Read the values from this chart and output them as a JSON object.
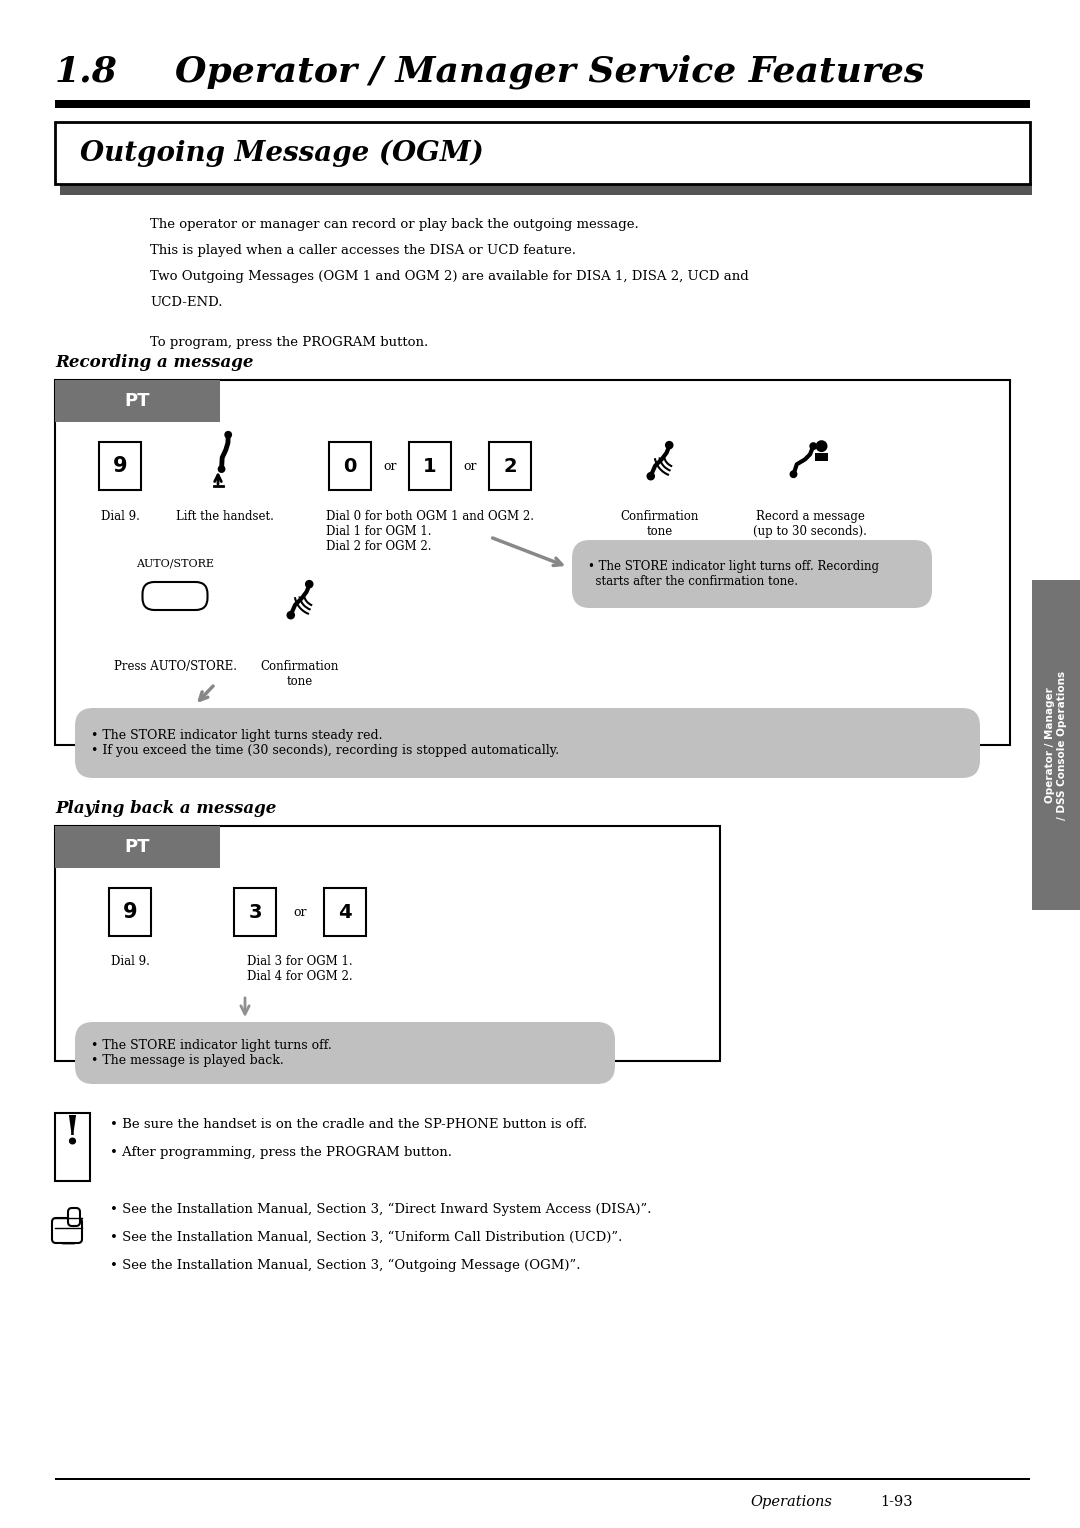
{
  "page_bg": "#ffffff",
  "title_number": "1.8",
  "title_text": "Operator / Manager Service Features",
  "section_title": "Outgoing Message (OGM)",
  "intro_line1": "The operator or manager can record or play back the outgoing message.",
  "intro_line2": "This is played when a caller accesses the DISA or UCD feature.",
  "intro_line3": "Two Outgoing Messages (OGM 1 and OGM 2) are available for DISA 1, DISA 2, UCD and",
  "intro_line4": "UCD-END.",
  "program_line": "To program, press the PROGRAM button.",
  "recording_title": "Recording a message",
  "playing_title": "Playing back a message",
  "pt_bg": "#737373",
  "pt_text": "PT",
  "bubble_bg": "#c0c0c0",
  "side_tab_bg": "#737373",
  "side_tab_line1": "Operator / Manager",
  "side_tab_line2": "/ DSS Console Operations",
  "footer_italic": "Operations",
  "footer_page": "1-93",
  "note_exclaim": [
    "Be sure the handset is on the cradle and the SP-PHONE button is off.",
    "After programming, press the PROGRAM button."
  ],
  "note_ref": [
    "See the Installation Manual, Section 3, “Direct Inward System Access (DISA)”.",
    "See the Installation Manual, Section 3, “Uniform Call Distribution (UCD)”.",
    "See the Installation Manual, Section 3, “Outgoing Message (OGM)”."
  ],
  "bubble1_text": "• The STORE indicator light turns off. Recording\n  starts after the confirmation tone.",
  "bubble2_text": "• The STORE indicator light turns steady red.\n• If you exceed the time (30 seconds), recording is stopped automatically.",
  "bubble3_text": "• The STORE indicator light turns off.\n• The message is played back."
}
